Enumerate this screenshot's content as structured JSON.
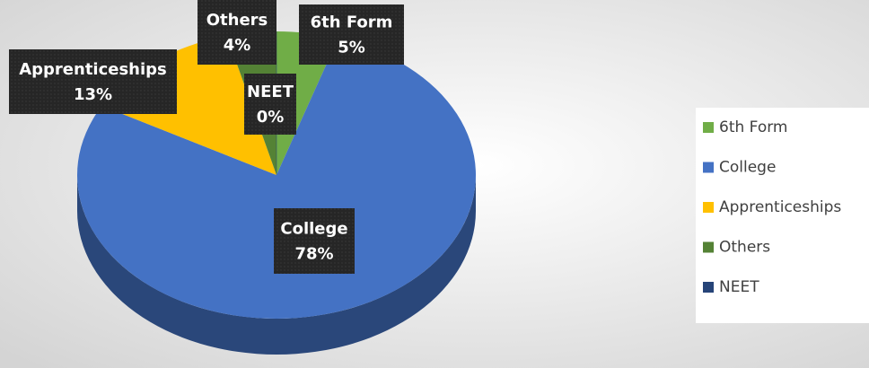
{
  "chart_data": {
    "type": "pie",
    "categories": [
      "6th Form",
      "College",
      "Apprenticeships",
      "Others",
      "NEET"
    ],
    "values": [
      5,
      78,
      13,
      4,
      0
    ],
    "value_labels": [
      "5%",
      "78%",
      "13%",
      "4%",
      "0%"
    ],
    "colors": [
      "#70ad47",
      "#4472c4",
      "#ffc000",
      "#548235",
      "#264478"
    ],
    "legend": "right"
  }
}
